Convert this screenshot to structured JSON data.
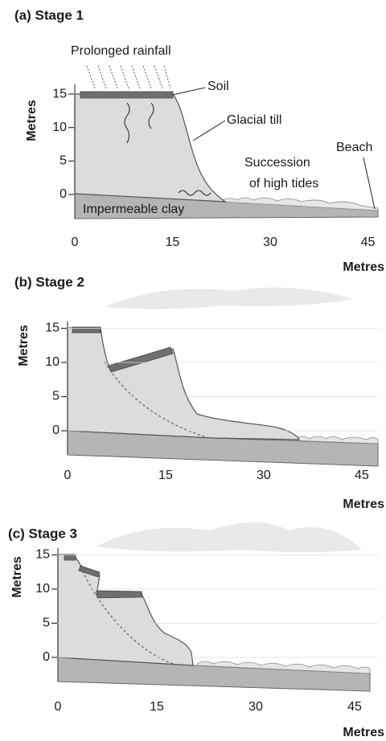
{
  "panels": [
    {
      "title": "(a) Stage 1",
      "y_label": "Metres",
      "x_label": "Metres",
      "yticks": [
        15,
        10,
        5,
        0
      ],
      "xticks": [
        0,
        15,
        30,
        45
      ],
      "labels": [
        "Prolonged rainfall",
        "Soil",
        "Glacial till",
        "Succession",
        "of high tides",
        "Beach",
        "Impermeable clay"
      ]
    },
    {
      "title": "(b) Stage 2",
      "y_label": "Metres",
      "x_label": "Metres",
      "yticks": [
        15,
        10,
        5,
        0
      ],
      "xticks": [
        0,
        15,
        30,
        45
      ]
    },
    {
      "title": "(c) Stage 3",
      "y_label": "Metres",
      "x_label": "Metres",
      "yticks": [
        15,
        10,
        5,
        0
      ],
      "xticks": [
        0,
        15,
        30,
        45
      ]
    }
  ]
}
